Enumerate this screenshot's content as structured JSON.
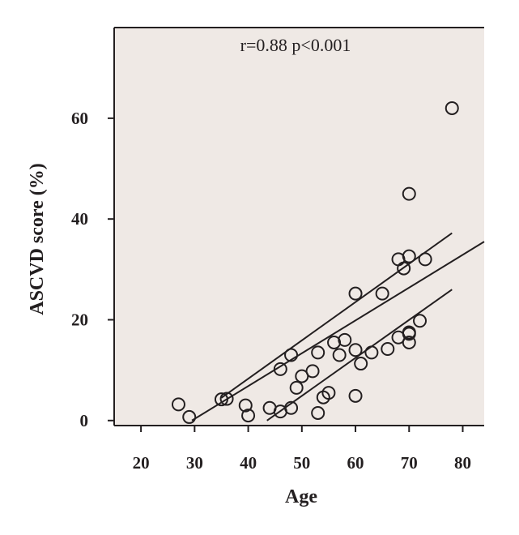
{
  "chart_data": {
    "type": "scatter",
    "title": "",
    "annotation": "r=0.88 p<0.001",
    "xlabel": "Age",
    "ylabel": "ASCVD score (%)",
    "xlim": [
      15,
      84
    ],
    "ylim": [
      -1,
      78
    ],
    "xticks": [
      20,
      30,
      40,
      50,
      60,
      70,
      80
    ],
    "yticks": [
      0,
      20,
      40,
      60
    ],
    "grid": false,
    "colors": {
      "background": "#efe9e5",
      "marker": "#231f20",
      "line": "#231f20"
    },
    "points": [
      {
        "x": 27,
        "y": 3.2
      },
      {
        "x": 29,
        "y": 0.7
      },
      {
        "x": 35,
        "y": 4.2
      },
      {
        "x": 36,
        "y": 4.3
      },
      {
        "x": 39.5,
        "y": 3.0
      },
      {
        "x": 40,
        "y": 1.0
      },
      {
        "x": 44,
        "y": 2.5
      },
      {
        "x": 46,
        "y": 1.8
      },
      {
        "x": 46,
        "y": 10.2
      },
      {
        "x": 48,
        "y": 2.5
      },
      {
        "x": 48,
        "y": 13.0
      },
      {
        "x": 49,
        "y": 6.5
      },
      {
        "x": 50,
        "y": 8.8
      },
      {
        "x": 52,
        "y": 9.8
      },
      {
        "x": 53,
        "y": 1.5
      },
      {
        "x": 53,
        "y": 13.5
      },
      {
        "x": 54,
        "y": 4.6
      },
      {
        "x": 55,
        "y": 5.5
      },
      {
        "x": 56,
        "y": 15.5
      },
      {
        "x": 57,
        "y": 13.0
      },
      {
        "x": 58,
        "y": 16.0
      },
      {
        "x": 60,
        "y": 14.0
      },
      {
        "x": 60,
        "y": 25.2
      },
      {
        "x": 60,
        "y": 4.9
      },
      {
        "x": 61,
        "y": 11.3
      },
      {
        "x": 63,
        "y": 13.5
      },
      {
        "x": 65,
        "y": 25.2
      },
      {
        "x": 66,
        "y": 14.2
      },
      {
        "x": 68,
        "y": 32.0
      },
      {
        "x": 68,
        "y": 16.5
      },
      {
        "x": 69,
        "y": 30.2
      },
      {
        "x": 70,
        "y": 32.6
      },
      {
        "x": 70,
        "y": 17.5
      },
      {
        "x": 70,
        "y": 17.2
      },
      {
        "x": 70,
        "y": 15.5
      },
      {
        "x": 70,
        "y": 45.0
      },
      {
        "x": 72,
        "y": 19.8
      },
      {
        "x": 73,
        "y": 32.0
      },
      {
        "x": 78,
        "y": 62.0
      }
    ],
    "lines": [
      {
        "x": [
          29.5,
          84
        ],
        "y": [
          0,
          35.5
        ]
      },
      {
        "x": [
          35,
          78
        ],
        "y": [
          4.5,
          37.2
        ]
      },
      {
        "x": [
          43.5,
          78
        ],
        "y": [
          0,
          26.0
        ]
      }
    ]
  }
}
